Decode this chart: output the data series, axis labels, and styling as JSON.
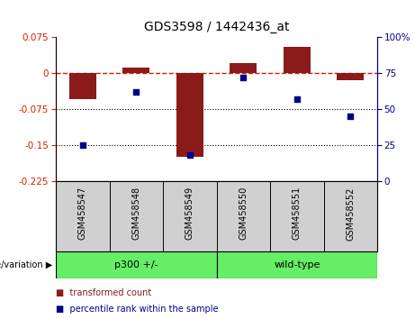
{
  "title": "GDS3598 / 1442436_at",
  "samples": [
    "GSM458547",
    "GSM458548",
    "GSM458549",
    "GSM458550",
    "GSM458551",
    "GSM458552"
  ],
  "red_bars": [
    -0.055,
    0.012,
    -0.175,
    0.02,
    0.055,
    -0.015
  ],
  "blue_dots": [
    25,
    62,
    18,
    72,
    57,
    45
  ],
  "ylim_left": [
    -0.225,
    0.075
  ],
  "ylim_right": [
    0,
    100
  ],
  "yticks_left": [
    0.075,
    0.0,
    -0.075,
    -0.15,
    -0.225
  ],
  "yticks_right": [
    100,
    75,
    50,
    25,
    0
  ],
  "hlines": [
    -0.075,
    -0.15
  ],
  "bar_color": "#8B1A1A",
  "dot_color": "#00008B",
  "dash_color": "#CC2200",
  "group1_label": "p300 +/-",
  "group2_label": "wild-type",
  "group1_indices": [
    0,
    1,
    2
  ],
  "group2_indices": [
    3,
    4,
    5
  ],
  "green_color": "#66EE66",
  "gray_color": "#D0D0D0",
  "genotype_label": "genotype/variation",
  "legend_red": "transformed count",
  "legend_blue": "percentile rank within the sample",
  "bar_width": 0.5,
  "title_fontsize": 10,
  "tick_fontsize": 7.5,
  "label_fontsize": 8
}
